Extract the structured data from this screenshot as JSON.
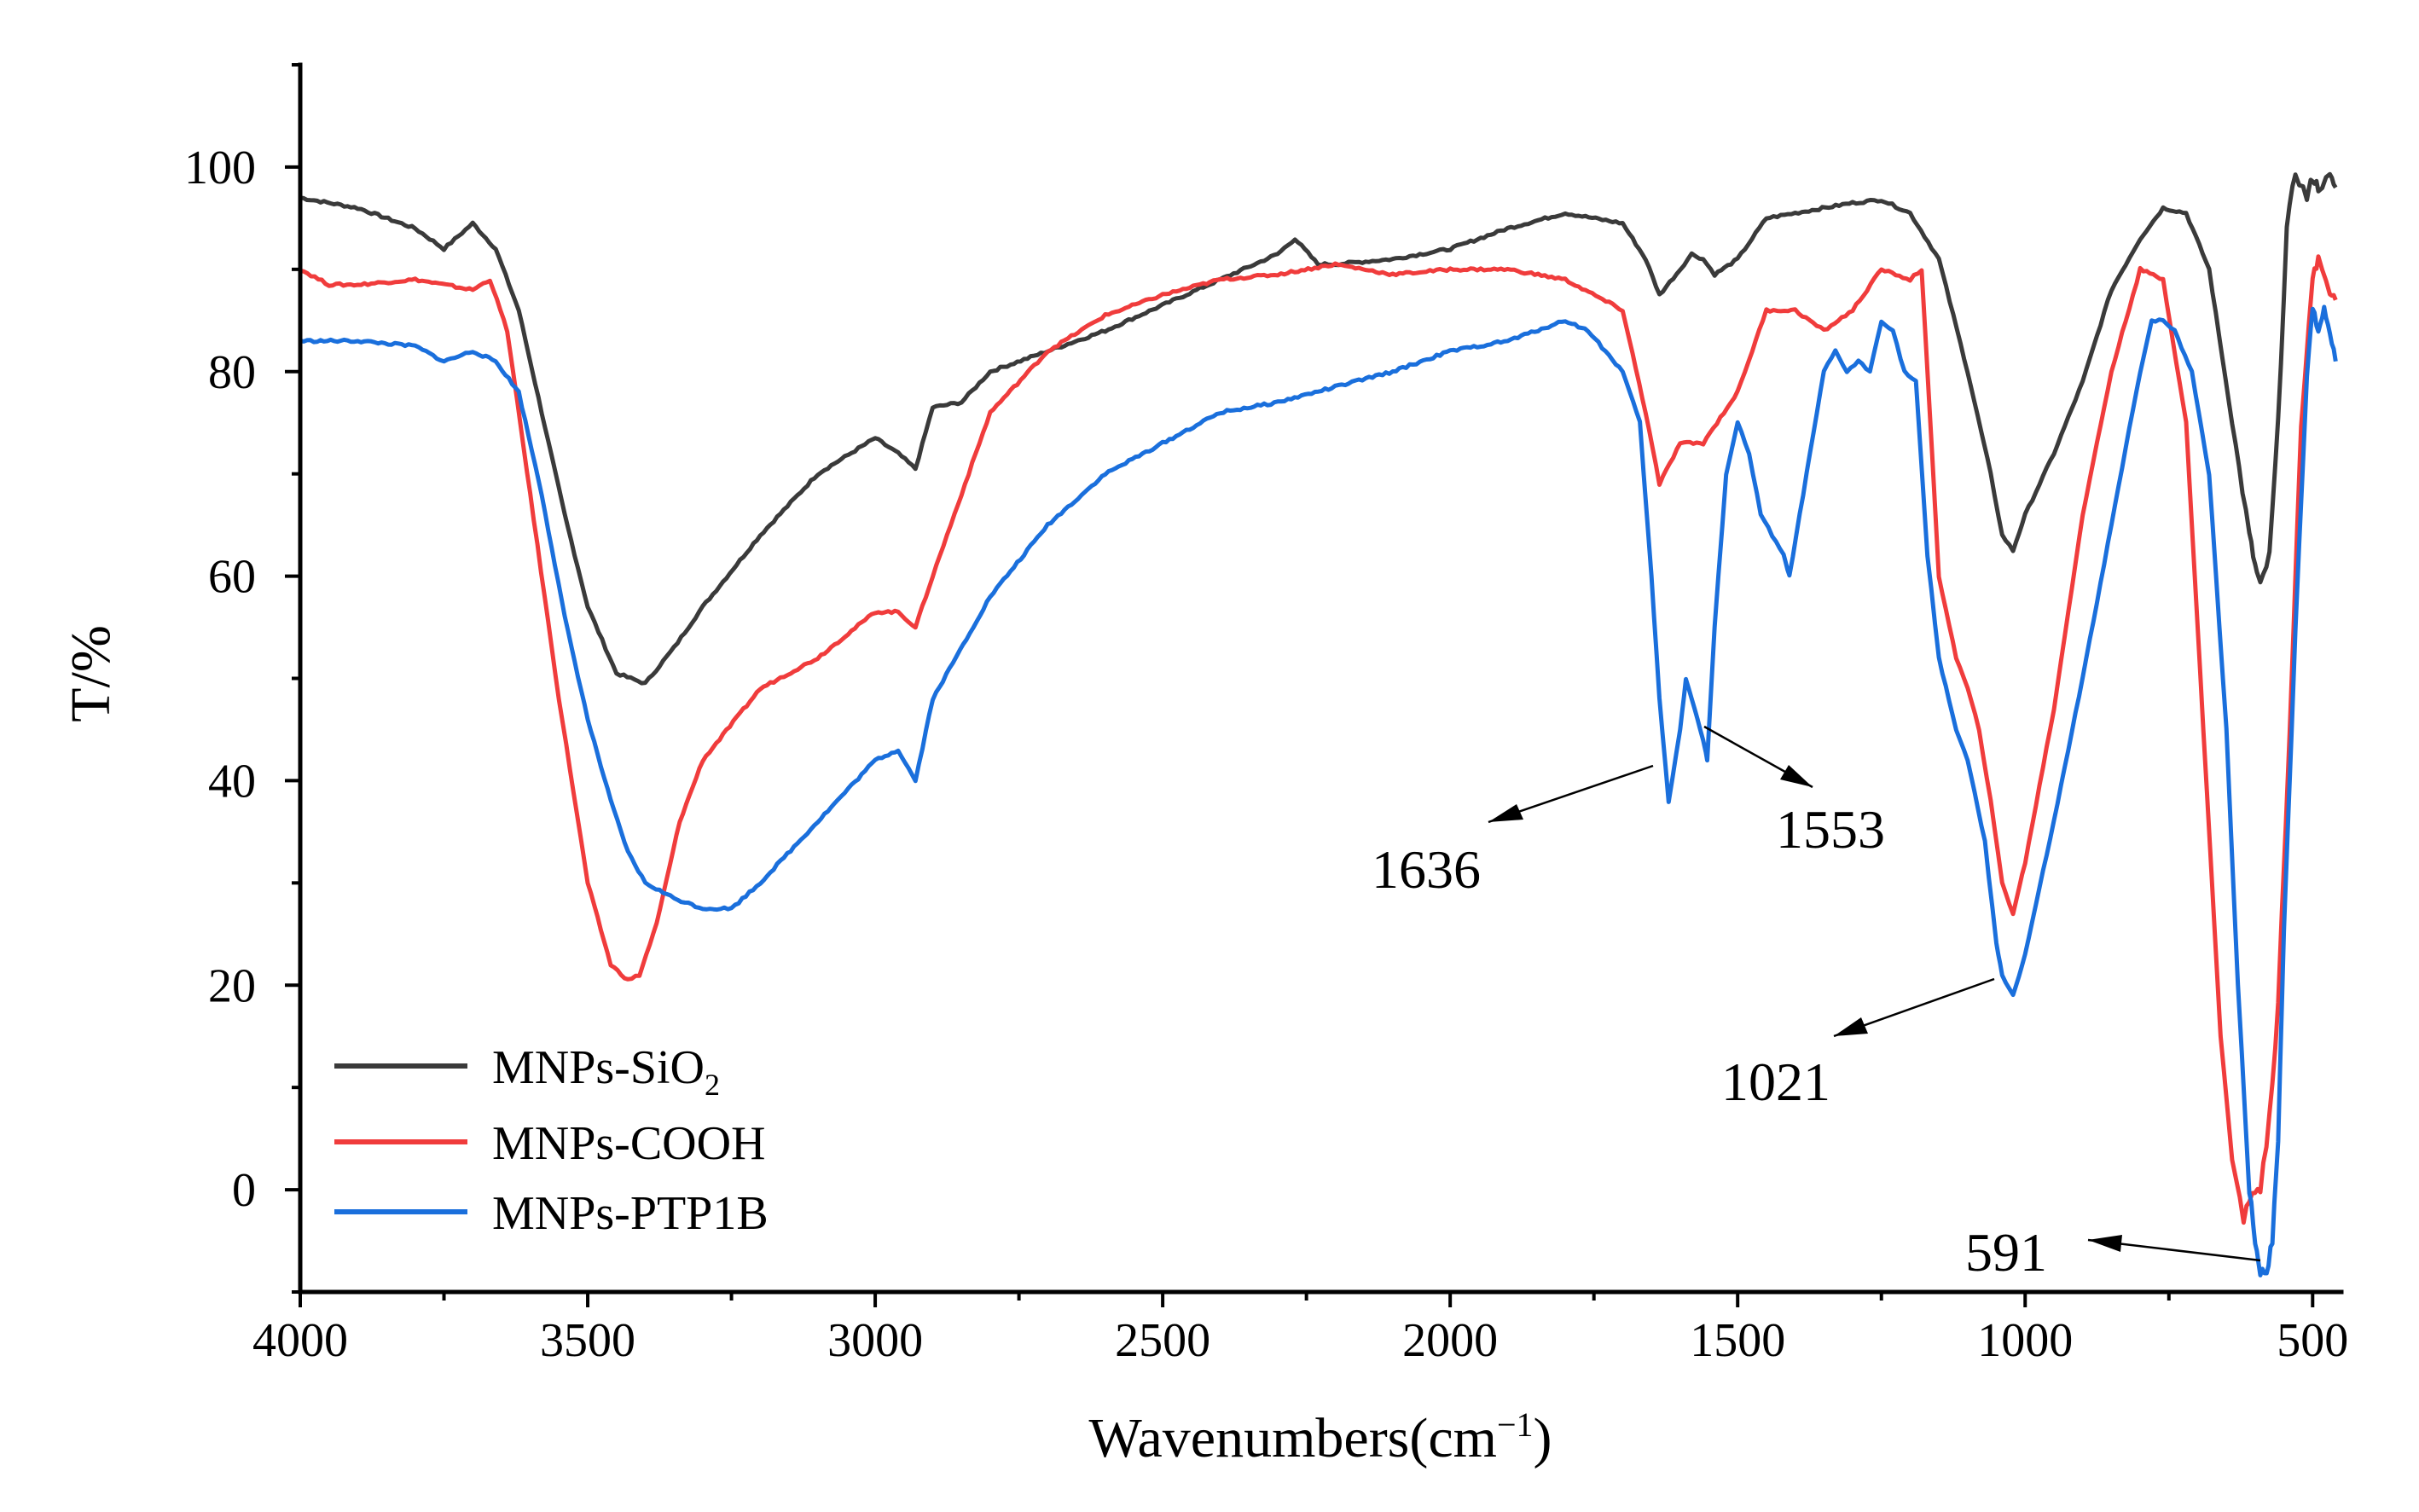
{
  "chart_data": {
    "type": "line",
    "title": "",
    "xlabel": "Wavenumbers(cm",
    "xlabel_sup": "−1",
    "xlabel_end": ")",
    "ylabel": "T/%",
    "xlim": [
      4000,
      450
    ],
    "ylim": [
      -10,
      110
    ],
    "x_ticks": [
      4000,
      3500,
      3000,
      2500,
      2000,
      1500,
      1000,
      500
    ],
    "x_tick_labels": [
      "4000",
      "3500",
      "3000",
      "2500",
      "2000",
      "1500",
      "1000",
      "500"
    ],
    "y_ticks": [
      0,
      20,
      40,
      60,
      80,
      100
    ],
    "y_tick_labels": [
      "0",
      "20",
      "40",
      "60",
      "80",
      "100"
    ],
    "grid": false,
    "legend_position": "bottom-left",
    "series": [
      {
        "name": "MNPs-SiO",
        "name_sub": "2",
        "color": "#3a3a3a",
        "x": [
          4000,
          3900,
          3800,
          3750,
          3700,
          3660,
          3620,
          3580,
          3540,
          3500,
          3450,
          3400,
          3350,
          3300,
          3200,
          3100,
          3000,
          2960,
          2930,
          2900,
          2850,
          2800,
          2700,
          2600,
          2500,
          2400,
          2300,
          2270,
          2230,
          2200,
          2100,
          2000,
          1900,
          1800,
          1700,
          1660,
          1636,
          1600,
          1580,
          1560,
          1540,
          1500,
          1450,
          1400,
          1300,
          1250,
          1200,
          1150,
          1100,
          1060,
          1040,
          1021,
          1000,
          950,
          900,
          850,
          800,
          760,
          720,
          680,
          640,
          610,
          600,
          591,
          575,
          560,
          545,
          530,
          510,
          500,
          490,
          470,
          460
        ],
        "y": [
          97,
          96,
          94,
          92,
          94.5,
          92,
          86,
          76,
          66,
          57,
          50.5,
          49.5,
          53,
          57,
          64,
          70,
          73.5,
          72,
          70.5,
          76.5,
          77,
          80,
          82,
          84,
          86.5,
          89,
          91.5,
          93,
          90.5,
          90.5,
          91,
          92,
          94,
          95.5,
          94.5,
          91,
          87.5,
          90,
          91.5,
          91,
          89.5,
          91,
          95,
          95.5,
          96.5,
          96.8,
          95.5,
          91,
          80,
          70,
          64,
          62.5,
          66,
          72,
          79,
          88,
          93,
          96,
          95.5,
          90,
          75,
          64,
          61,
          59,
          62,
          75,
          94,
          99.5,
          97,
          99,
          98,
          99,
          98
        ]
      },
      {
        "name": "MNPs-COOH",
        "name_sub": "",
        "color": "#f03c3c",
        "x": [
          4000,
          3950,
          3900,
          3800,
          3700,
          3670,
          3640,
          3600,
          3550,
          3500,
          3460,
          3430,
          3410,
          3380,
          3340,
          3300,
          3200,
          3100,
          3000,
          2960,
          2930,
          2900,
          2850,
          2800,
          2700,
          2600,
          2500,
          2400,
          2300,
          2200,
          2100,
          2000,
          1900,
          1800,
          1700,
          1660,
          1636,
          1600,
          1560,
          1500,
          1450,
          1400,
          1350,
          1300,
          1250,
          1200,
          1180,
          1150,
          1120,
          1100,
          1080,
          1060,
          1040,
          1021,
          1000,
          950,
          900,
          850,
          800,
          760,
          720,
          690,
          660,
          640,
          620,
          605,
          591,
          575,
          560,
          540,
          520,
          500,
          490,
          470,
          460
        ],
        "y": [
          90,
          88.5,
          88.5,
          89,
          88,
          89,
          84,
          68,
          48,
          30,
          22,
          20.5,
          21,
          26,
          36,
          42,
          49,
          52,
          56.5,
          56.5,
          55,
          60,
          68,
          76,
          82,
          85.5,
          87.5,
          89,
          89.5,
          90.5,
          89.5,
          90,
          90,
          89,
          86,
          76,
          69,
          73,
          73,
          78,
          86,
          86,
          84,
          86,
          90,
          89,
          90,
          60,
          52,
          49,
          45,
          38,
          30,
          27,
          32,
          47,
          66,
          80,
          90,
          89,
          75,
          45,
          15,
          3,
          -3,
          0,
          0,
          7,
          18,
          45,
          75,
          89,
          91,
          88,
          87
        ]
      },
      {
        "name": "MNPs-PTP1B",
        "name_sub": "",
        "color": "#1a6fdc",
        "x": [
          4000,
          3900,
          3800,
          3750,
          3700,
          3660,
          3620,
          3580,
          3540,
          3500,
          3460,
          3430,
          3400,
          3350,
          3300,
          3250,
          3200,
          3100,
          3000,
          2960,
          2930,
          2900,
          2800,
          2700,
          2600,
          2500,
          2400,
          2300,
          2200,
          2100,
          2000,
          1900,
          1800,
          1760,
          1700,
          1670,
          1650,
          1636,
          1620,
          1600,
          1590,
          1575,
          1560,
          1553,
          1540,
          1520,
          1500,
          1480,
          1460,
          1440,
          1420,
          1410,
          1380,
          1350,
          1330,
          1310,
          1290,
          1270,
          1250,
          1230,
          1210,
          1190,
          1170,
          1150,
          1120,
          1100,
          1070,
          1050,
          1040,
          1021,
          1000,
          950,
          900,
          850,
          800,
          780,
          760,
          740,
          710,
          680,
          650,
          630,
          610,
          600,
          591,
          580,
          570,
          560,
          550,
          530,
          510,
          500,
          490,
          480,
          470,
          460
        ],
        "y": [
          83,
          83,
          82.5,
          81,
          82,
          81,
          78,
          68,
          56,
          46,
          38,
          33,
          30,
          28.5,
          27.5,
          27.5,
          30,
          36,
          42,
          43,
          40,
          48,
          58,
          65,
          70,
          73,
          76,
          77,
          78.5,
          80,
          82,
          83,
          85,
          84,
          80,
          75,
          60,
          48,
          38,
          45,
          50,
          47,
          44,
          42,
          55,
          70,
          75,
          72,
          66,
          64,
          62,
          60,
          70,
          80,
          82,
          80,
          81,
          80,
          85,
          84,
          80,
          79,
          62,
          52,
          45,
          42,
          34,
          24,
          21,
          19,
          23,
          36,
          50,
          65,
          80,
          85,
          85,
          84,
          80,
          70,
          45,
          20,
          0,
          -5,
          -8,
          -8,
          -5,
          5,
          25,
          55,
          80,
          86,
          84,
          86,
          84,
          81
        ]
      }
    ],
    "annotations": [
      {
        "label": "1636",
        "x": 1636
      },
      {
        "label": "1553",
        "x": 1553
      },
      {
        "label": "1021",
        "x": 1021
      },
      {
        "label": "591",
        "x": 591
      }
    ]
  }
}
